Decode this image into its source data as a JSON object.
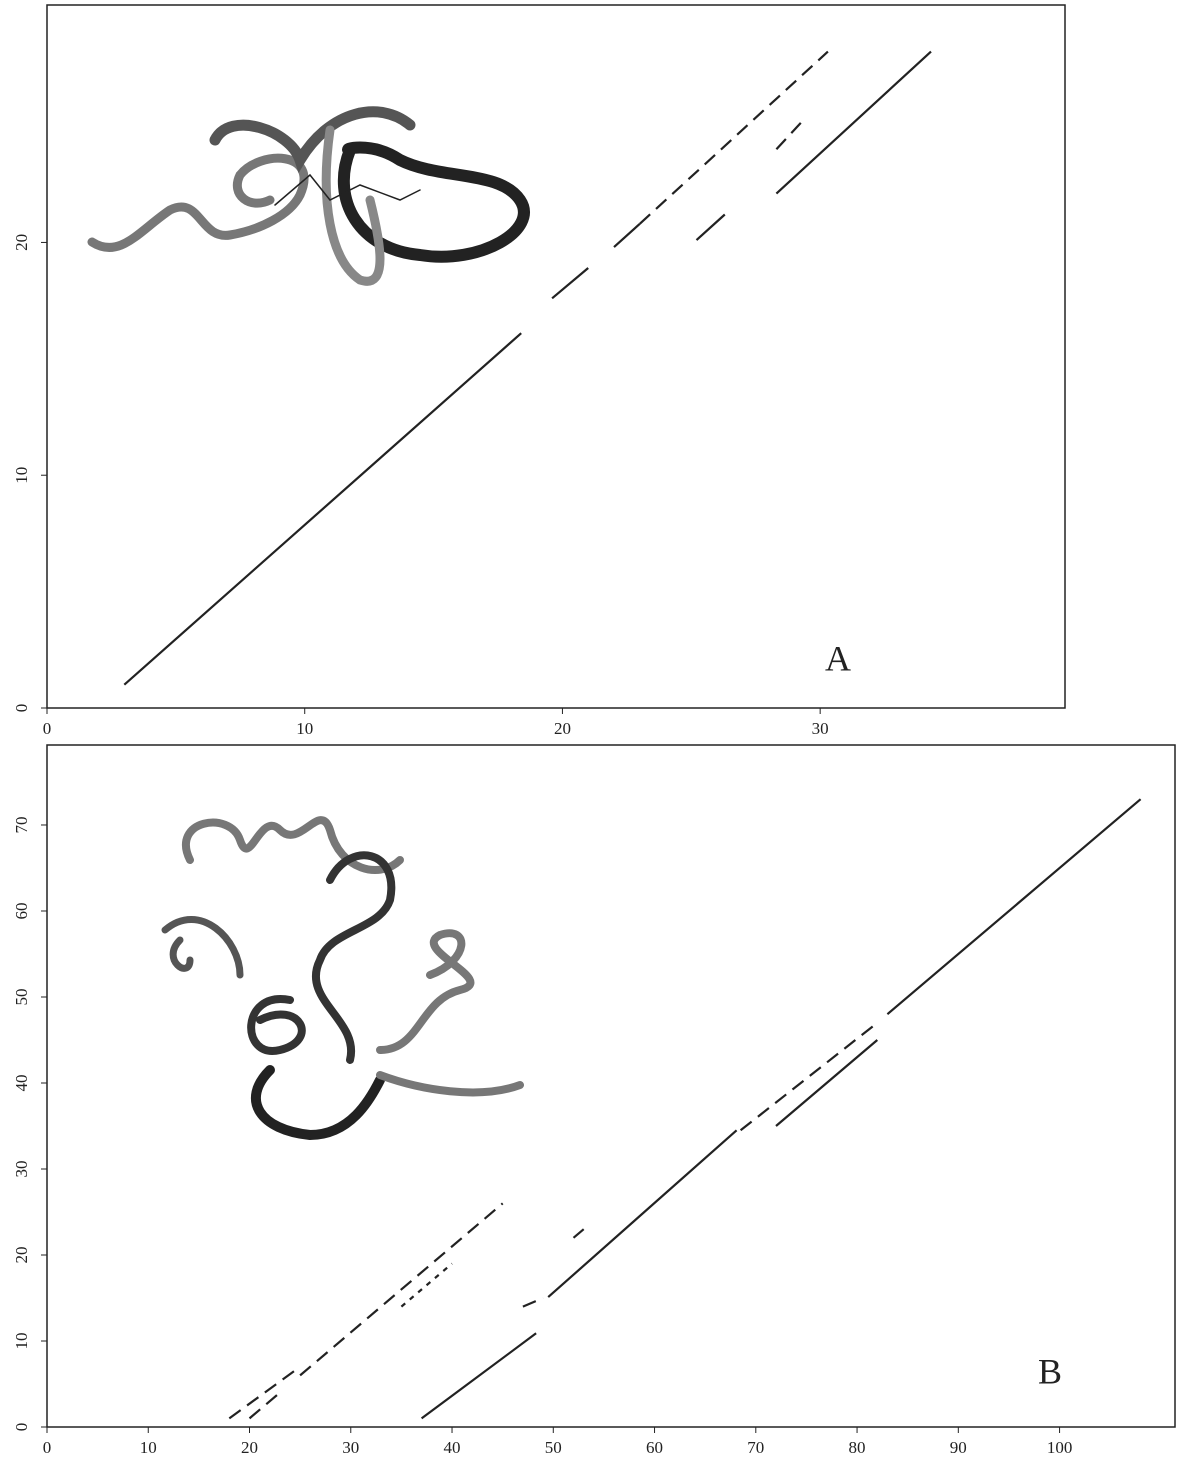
{
  "chart_data": [
    {
      "type": "line",
      "annotation": "A",
      "xlim": [
        0,
        39.5
      ],
      "ylim": [
        0,
        30.2
      ],
      "xticks": [
        0,
        10,
        20,
        30
      ],
      "yticks": [
        0,
        10,
        20
      ],
      "series": [
        {
          "color": "#222222",
          "dash": "solid",
          "x": [
            3,
            18.4,
            null,
            19.6,
            21,
            null,
            22,
            23,
            null,
            28.3,
            34.3,
            null,
            25.2,
            26.3
          ],
          "values": [
            1,
            16.1,
            null,
            17.6,
            18.9,
            null,
            19.8,
            20.8,
            null,
            22.1,
            28.2,
            null,
            20.1,
            21.2
          ]
        },
        {
          "color": "#222222",
          "dash": "dashed",
          "x": [
            23,
            30.3,
            null,
            28.3,
            29.3
          ],
          "values": [
            20.8,
            28.2,
            null,
            24.0,
            25.2
          ]
        }
      ]
    },
    {
      "type": "line",
      "annotation": "B",
      "xlim": [
        0,
        111.4
      ],
      "ylim": [
        0,
        79.3
      ],
      "xticks": [
        0,
        10,
        20,
        30,
        40,
        50,
        60,
        70,
        80,
        90,
        100
      ],
      "yticks": [
        0,
        10,
        20,
        30,
        40,
        50,
        60,
        70
      ],
      "series": [
        {
          "color": "#222222",
          "dash": "solid",
          "x": [
            37,
            48.3,
            null,
            49.5,
            68.1,
            null,
            72,
            82,
            null,
            83,
            108
          ],
          "values": [
            1,
            10.9,
            null,
            15.1,
            34.5,
            null,
            35,
            45,
            null,
            48,
            73
          ]
        },
        {
          "color": "#222222",
          "dash": "dashed",
          "x": [
            18,
            25,
            null,
            20,
            23,
            null,
            25,
            45,
            null,
            47,
            49,
            null,
            52,
            53,
            null,
            68.5,
            82
          ],
          "values": [
            1,
            7,
            null,
            1,
            4,
            null,
            6,
            26,
            null,
            14,
            15,
            null,
            22,
            23,
            null,
            34.5,
            47
          ]
        },
        {
          "color": "#222222",
          "dash": "dotted",
          "x": [
            35,
            40
          ],
          "values": [
            14,
            19
          ]
        }
      ]
    }
  ]
}
